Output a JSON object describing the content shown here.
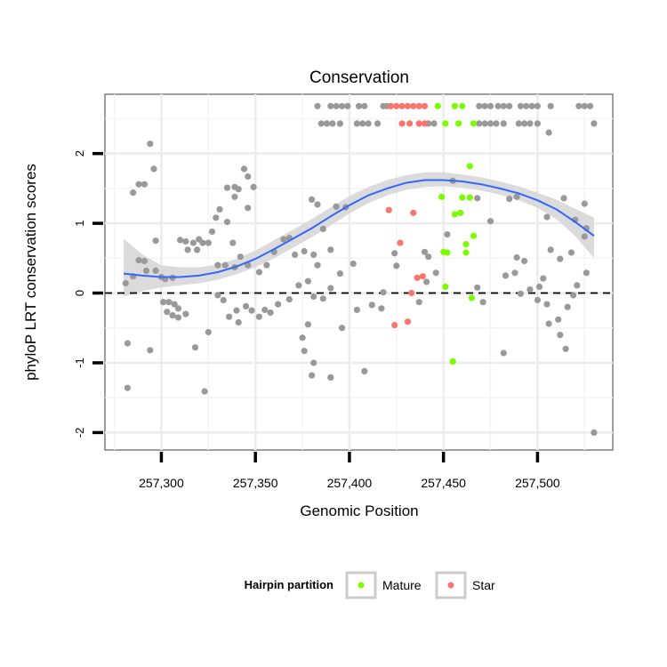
{
  "chart_data": {
    "type": "scatter",
    "title": "Conservation",
    "xlabel": "Genomic Position",
    "ylabel": "phyloP LRT conservation scores",
    "xlim": [
      257270,
      257540
    ],
    "ylim": [
      -2.25,
      2.85
    ],
    "x_ticks": [
      257300,
      257350,
      257400,
      257450,
      257500
    ],
    "x_tick_labels": [
      "257,300",
      "257,350",
      "257,400",
      "257,450",
      "257,500"
    ],
    "y_ticks": [
      -2,
      -1,
      0,
      1,
      2
    ],
    "y_tick_labels": [
      "-2",
      "-1",
      "0",
      "1",
      "2"
    ],
    "grid": true,
    "reference_line": {
      "y": 0,
      "style": "dashed"
    },
    "legend": {
      "title": "Hairpin partition",
      "position": "bottom",
      "entries": [
        {
          "name": "Mature",
          "color": "#7cfc00"
        },
        {
          "name": "Star",
          "color": "#f8766d"
        }
      ]
    },
    "colors": {
      "other": "#999999",
      "mature": "#7cfc00",
      "star": "#f8766d",
      "smooth": "#3366ff",
      "band": "#d9d9d9"
    },
    "series": [
      {
        "name": "Mature",
        "points": [
          [
            257447,
            2.68
          ],
          [
            257456,
            2.68
          ],
          [
            257460,
            2.68
          ],
          [
            257451,
            2.43
          ],
          [
            257458,
            2.43
          ],
          [
            257466,
            2.43
          ],
          [
            257464,
            1.82
          ],
          [
            257449,
            1.38
          ],
          [
            257460,
            1.37
          ],
          [
            257464,
            1.37
          ],
          [
            257456,
            1.13
          ],
          [
            257459,
            1.15
          ],
          [
            257466,
            0.82
          ],
          [
            257462,
            0.7
          ],
          [
            257450,
            0.59
          ],
          [
            257452,
            0.58
          ],
          [
            257462,
            0.58
          ],
          [
            257451,
            0.09
          ],
          [
            257465,
            -0.07
          ],
          [
            257455,
            -0.98
          ]
        ]
      },
      {
        "name": "Star",
        "points": [
          [
            257422,
            2.68
          ],
          [
            257425,
            2.68
          ],
          [
            257428,
            2.68
          ],
          [
            257431,
            2.68
          ],
          [
            257434,
            2.68
          ],
          [
            257437,
            2.68
          ],
          [
            257440,
            2.68
          ],
          [
            257428,
            2.43
          ],
          [
            257432,
            2.43
          ],
          [
            257437,
            2.43
          ],
          [
            257440,
            2.43
          ],
          [
            257421,
            1.19
          ],
          [
            257434,
            1.15
          ],
          [
            257427,
            0.72
          ],
          [
            257436,
            0.22
          ],
          [
            257439,
            0.24
          ],
          [
            257433,
            0.0
          ],
          [
            257424,
            -0.46
          ],
          [
            257431,
            -0.41
          ]
        ]
      },
      {
        "name": "",
        "points": [
          [
            257383,
            2.68
          ],
          [
            257390,
            2.68
          ],
          [
            257393,
            2.68
          ],
          [
            257396,
            2.68
          ],
          [
            257399,
            2.68
          ],
          [
            257405,
            2.68
          ],
          [
            257408,
            2.68
          ],
          [
            257418,
            2.68
          ],
          [
            257420,
            2.68
          ],
          [
            257469,
            2.68
          ],
          [
            257472,
            2.68
          ],
          [
            257475,
            2.68
          ],
          [
            257479,
            2.68
          ],
          [
            257482,
            2.68
          ],
          [
            257485,
            2.68
          ],
          [
            257491,
            2.68
          ],
          [
            257494,
            2.68
          ],
          [
            257497,
            2.68
          ],
          [
            257500,
            2.68
          ],
          [
            257507,
            2.68
          ],
          [
            257522,
            2.68
          ],
          [
            257525,
            2.68
          ],
          [
            257528,
            2.68
          ],
          [
            257385,
            2.43
          ],
          [
            257388,
            2.43
          ],
          [
            257391,
            2.43
          ],
          [
            257395,
            2.43
          ],
          [
            257404,
            2.43
          ],
          [
            257407,
            2.43
          ],
          [
            257410,
            2.43
          ],
          [
            257415,
            2.43
          ],
          [
            257442,
            2.43
          ],
          [
            257445,
            2.43
          ],
          [
            257469,
            2.43
          ],
          [
            257472,
            2.43
          ],
          [
            257475,
            2.43
          ],
          [
            257478,
            2.43
          ],
          [
            257482,
            2.43
          ],
          [
            257490,
            2.43
          ],
          [
            257493,
            2.43
          ],
          [
            257496,
            2.43
          ],
          [
            257500,
            2.43
          ],
          [
            257530,
            2.43
          ],
          [
            257294,
            2.14
          ],
          [
            257296,
            1.78
          ],
          [
            257344,
            1.78
          ],
          [
            257346,
            1.67
          ],
          [
            257335,
            1.51
          ],
          [
            257339,
            1.52
          ],
          [
            257341,
            1.49
          ],
          [
            257288,
            1.56
          ],
          [
            257291,
            1.56
          ],
          [
            257285,
            1.44
          ],
          [
            257349,
            1.52
          ],
          [
            257339,
            1.38
          ],
          [
            257380,
            1.34
          ],
          [
            257383,
            1.27
          ],
          [
            257346,
            1.22
          ],
          [
            257331,
            1.2
          ],
          [
            257329,
            1.08
          ],
          [
            257335,
            1.02
          ],
          [
            257327,
            0.88
          ],
          [
            257320,
            0.77
          ],
          [
            257322,
            0.72
          ],
          [
            257317,
            0.72
          ],
          [
            257313,
            0.74
          ],
          [
            257310,
            0.76
          ],
          [
            257314,
            0.62
          ],
          [
            257319,
            0.62
          ],
          [
            257325,
            0.72
          ],
          [
            257338,
            0.72
          ],
          [
            257330,
            0.4
          ],
          [
            257334,
            0.4
          ],
          [
            257339,
            0.37
          ],
          [
            257342,
            0.52
          ],
          [
            257346,
            0.4
          ],
          [
            257352,
            0.3
          ],
          [
            257356,
            0.4
          ],
          [
            257360,
            0.59
          ],
          [
            257365,
            0.77
          ],
          [
            257368,
            0.79
          ],
          [
            257371,
            0.55
          ],
          [
            257376,
            0.6
          ],
          [
            257381,
            0.55
          ],
          [
            257383,
            0.4
          ],
          [
            257386,
            0.92
          ],
          [
            257393,
            1.24
          ],
          [
            257398,
            1.23
          ],
          [
            257402,
            0.42
          ],
          [
            257390,
            0.62
          ],
          [
            257395,
            0.28
          ],
          [
            257297,
            0.75
          ],
          [
            257288,
            0.47
          ],
          [
            257291,
            0.46
          ],
          [
            257292,
            0.32
          ],
          [
            257297,
            0.32
          ],
          [
            257300,
            0.23
          ],
          [
            257302,
            0.2
          ],
          [
            257306,
            0.22
          ],
          [
            257285,
            0.24
          ],
          [
            257281,
            0.14
          ],
          [
            257301,
            -0.13
          ],
          [
            257304,
            -0.13
          ],
          [
            257307,
            -0.16
          ],
          [
            257309,
            -0.22
          ],
          [
            257303,
            -0.27
          ],
          [
            257306,
            -0.32
          ],
          [
            257309,
            -0.35
          ],
          [
            257313,
            -0.3
          ],
          [
            257330,
            -0.03
          ],
          [
            257333,
            -0.1
          ],
          [
            257336,
            -0.34
          ],
          [
            257340,
            -0.25
          ],
          [
            257341,
            -0.42
          ],
          [
            257345,
            -0.19
          ],
          [
            257348,
            -0.25
          ],
          [
            257352,
            -0.34
          ],
          [
            257355,
            -0.24
          ],
          [
            257358,
            -0.28
          ],
          [
            257362,
            -0.16
          ],
          [
            257368,
            -0.09
          ],
          [
            257373,
            0.11
          ],
          [
            257378,
            0.17
          ],
          [
            257381,
            -0.05
          ],
          [
            257386,
            -0.08
          ],
          [
            257390,
            0.07
          ],
          [
            257294,
            -0.82
          ],
          [
            257282,
            -0.72
          ],
          [
            257282,
            -1.36
          ],
          [
            257318,
            -0.78
          ],
          [
            257325,
            -0.56
          ],
          [
            257323,
            -1.41
          ],
          [
            257375,
            -0.64
          ],
          [
            257378,
            -0.45
          ],
          [
            257376,
            -0.83
          ],
          [
            257380,
            -1.18
          ],
          [
            257381,
            -1.0
          ],
          [
            257390,
            -1.21
          ],
          [
            257396,
            -0.5
          ],
          [
            257404,
            -0.24
          ],
          [
            257408,
            -1.12
          ],
          [
            257412,
            -0.17
          ],
          [
            257417,
            -0.22
          ],
          [
            257418,
            0.01
          ],
          [
            257424,
            0.57
          ],
          [
            257437,
            -0.13
          ],
          [
            257441,
            0.16
          ],
          [
            257440,
            0.59
          ],
          [
            257442,
            0.52
          ],
          [
            257446,
            0.29
          ],
          [
            257468,
            0.08
          ],
          [
            257471,
            -0.13
          ],
          [
            257483,
            0.25
          ],
          [
            257488,
            0.29
          ],
          [
            257491,
            -0.01
          ],
          [
            257496,
            0.05
          ],
          [
            257501,
            0.09
          ],
          [
            257503,
            0.21
          ],
          [
            257500,
            -0.1
          ],
          [
            257505,
            -0.16
          ],
          [
            257506,
            -0.44
          ],
          [
            257511,
            -0.38
          ],
          [
            257516,
            -0.2
          ],
          [
            257512,
            -0.6
          ],
          [
            257515,
            -0.8
          ],
          [
            257519,
            -0.03
          ],
          [
            257521,
            0.11
          ],
          [
            257526,
            0.29
          ],
          [
            257530,
            -2.0
          ],
          [
            257482,
            -0.86
          ],
          [
            257489,
            0.51
          ],
          [
            257493,
            0.46
          ],
          [
            257507,
            0.62
          ],
          [
            257512,
            0.49
          ],
          [
            257518,
            0.58
          ],
          [
            257525,
            0.81
          ],
          [
            257526,
            0.93
          ],
          [
            257520,
            1.05
          ],
          [
            257525,
            1.28
          ],
          [
            257514,
            1.36
          ],
          [
            257506,
            2.3
          ],
          [
            257505,
            1.09
          ],
          [
            257468,
            1.36
          ],
          [
            257485,
            1.35
          ],
          [
            257489,
            1.38
          ],
          [
            257475,
            1.03
          ],
          [
            257455,
            1.61
          ],
          [
            257452,
            0.84
          ],
          [
            257425,
            0.39
          ]
        ]
      }
    ],
    "smooth": {
      "x": [
        257280,
        257290,
        257300,
        257310,
        257320,
        257330,
        257340,
        257350,
        257360,
        257370,
        257380,
        257390,
        257400,
        257410,
        257420,
        257430,
        257440,
        257450,
        257460,
        257470,
        257480,
        257490,
        257500,
        257510,
        257520,
        257530
      ],
      "y": [
        0.28,
        0.25,
        0.23,
        0.23,
        0.25,
        0.3,
        0.38,
        0.49,
        0.63,
        0.78,
        0.93,
        1.1,
        1.26,
        1.4,
        1.5,
        1.58,
        1.62,
        1.62,
        1.6,
        1.56,
        1.5,
        1.43,
        1.33,
        1.2,
        1.02,
        0.82
      ],
      "lower": [
        -0.05,
        0.03,
        0.08,
        0.11,
        0.14,
        0.19,
        0.27,
        0.37,
        0.5,
        0.65,
        0.8,
        0.97,
        1.14,
        1.29,
        1.4,
        1.48,
        1.52,
        1.53,
        1.51,
        1.47,
        1.41,
        1.33,
        1.22,
        1.06,
        0.82,
        0.5
      ],
      "upper": [
        0.78,
        0.55,
        0.4,
        0.37,
        0.37,
        0.41,
        0.49,
        0.61,
        0.76,
        0.91,
        1.06,
        1.23,
        1.39,
        1.52,
        1.62,
        1.69,
        1.73,
        1.73,
        1.7,
        1.66,
        1.6,
        1.53,
        1.44,
        1.34,
        1.21,
        1.08
      ]
    }
  }
}
